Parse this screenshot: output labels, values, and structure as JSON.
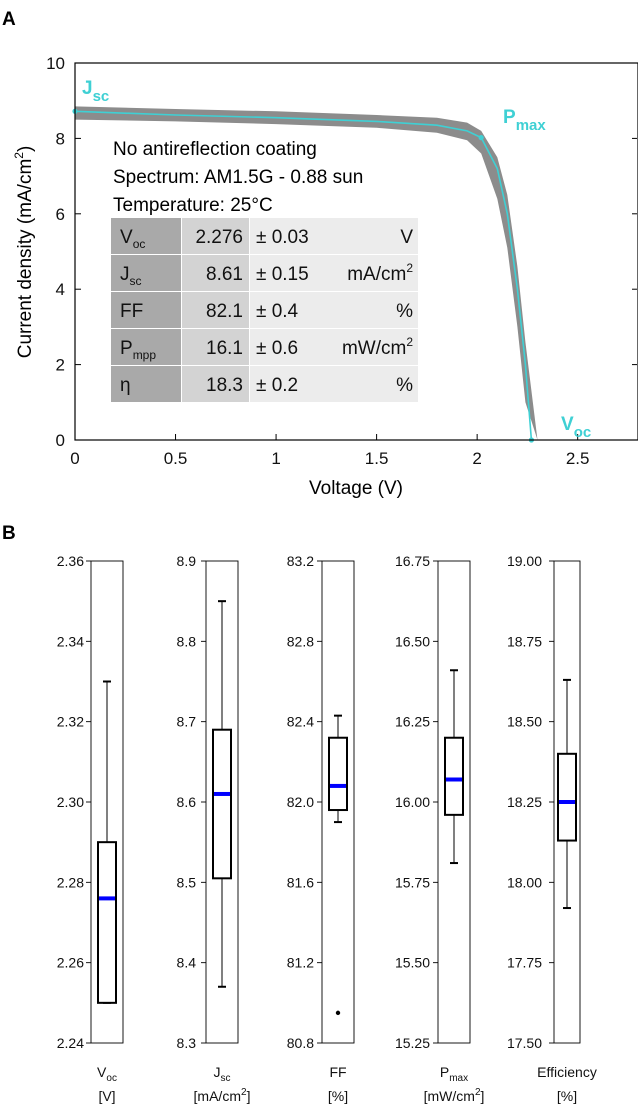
{
  "panel_a": {
    "label": "A",
    "annotations": {
      "line1": "No antireflection coating",
      "line2": "Spectrum: AM1.5G - 0.88 sun",
      "line3": "Temperature: 25°C"
    },
    "point_labels": {
      "jsc": {
        "main": "J",
        "sub": "sc"
      },
      "pmax": {
        "main": "P",
        "sub": "max"
      },
      "voc": {
        "main": "V",
        "sub": "oc"
      }
    },
    "table": [
      {
        "param": "V",
        "sub": "oc",
        "value": "2.276",
        "err": "± 0.03",
        "unit": "V",
        "unit_sup": ""
      },
      {
        "param": "J",
        "sub": "sc",
        "value": "8.61",
        "err": "± 0.15",
        "unit": "mA/cm",
        "unit_sup": "2"
      },
      {
        "param": "FF",
        "sub": "",
        "value": "82.1",
        "err": "± 0.4",
        "unit": "%",
        "unit_sup": ""
      },
      {
        "param": "P",
        "sub": "mpp",
        "value": "16.1",
        "err": "± 0.6",
        "unit": "mW/cm",
        "unit_sup": "2"
      },
      {
        "param": "η",
        "sub": "",
        "value": "18.3",
        "err": "± 0.2",
        "unit": "%",
        "unit_sup": ""
      }
    ]
  },
  "panel_b": {
    "label": "B"
  },
  "colors": {
    "curve": "#3fd0d4",
    "band": "#8c8c8c",
    "median": "#0000ff",
    "label": "#3fd0d4"
  },
  "chart_data": [
    {
      "type": "line",
      "xlabel": "Voltage (V)",
      "ylabel": "Current density (mA/cm",
      "ylabel_sup": "2",
      "ylabel_end": ")",
      "xlim": [
        0,
        2.8
      ],
      "ylim": [
        0,
        10
      ],
      "xticks": [
        "0",
        "0.5",
        "1",
        "1.5",
        "2",
        "2.5"
      ],
      "yticks": [
        "0",
        "2",
        "4",
        "6",
        "8",
        "10"
      ],
      "series": [
        {
          "x": [
            0,
            0.2,
            0.5,
            1.0,
            1.5,
            1.8,
            1.95,
            2.02,
            2.1,
            2.15,
            2.2,
            2.24,
            2.27
          ],
          "y": [
            8.72,
            8.68,
            8.62,
            8.55,
            8.45,
            8.35,
            8.2,
            8.02,
            7.2,
            6.0,
            4.0,
            2.0,
            0.0
          ]
        }
      ],
      "band": {
        "x": [
          0,
          0.5,
          1.0,
          1.5,
          1.8,
          1.95,
          2.02,
          2.1,
          2.15,
          2.2,
          2.24,
          2.3
        ],
        "upper": [
          8.85,
          8.78,
          8.72,
          8.62,
          8.55,
          8.42,
          8.2,
          7.5,
          6.5,
          4.6,
          2.6,
          0.0
        ],
        "lower": [
          8.5,
          8.45,
          8.38,
          8.28,
          8.15,
          7.95,
          7.6,
          6.4,
          5.1,
          3.0,
          1.0,
          0.0
        ]
      },
      "markers": {
        "jsc": [
          0,
          8.72
        ],
        "pmax": [
          2.02,
          8.02
        ],
        "voc": [
          2.27,
          0
        ]
      }
    },
    {
      "type": "box",
      "plots": [
        {
          "label": "V",
          "sub": "oc",
          "unit": "[V]",
          "unit_sup": "",
          "ylim": [
            2.24,
            2.36
          ],
          "ticks": [
            "2.24",
            "2.26",
            "2.28",
            "2.30",
            "2.32",
            "2.34",
            "2.36"
          ],
          "whisker_low": 2.25,
          "q1": 2.25,
          "median": 2.276,
          "q3": 2.29,
          "whisker_high": 2.33,
          "outliers": []
        },
        {
          "label": "J",
          "sub": "sc",
          "unit": "[mA/cm",
          "unit_sup": "2",
          "unit_end": "]",
          "ylim": [
            8.3,
            8.9
          ],
          "ticks": [
            "8.3",
            "8.4",
            "8.5",
            "8.6",
            "8.7",
            "8.8",
            "8.9"
          ],
          "whisker_low": 8.37,
          "q1": 8.505,
          "median": 8.61,
          "q3": 8.69,
          "whisker_high": 8.85,
          "outliers": []
        },
        {
          "label": "FF",
          "sub": "",
          "unit": "[%]",
          "unit_sup": "",
          "ylim": [
            80.8,
            83.2
          ],
          "ticks": [
            "80.8",
            "81.2",
            "81.6",
            "82.0",
            "82.4",
            "82.8",
            "83.2"
          ],
          "whisker_low": 81.9,
          "q1": 81.96,
          "median": 82.08,
          "q3": 82.32,
          "whisker_high": 82.43,
          "outliers": [
            80.95
          ]
        },
        {
          "label": "P",
          "sub": "max",
          "unit": "[mW/cm",
          "unit_sup": "2",
          "unit_end": "]",
          "ylim": [
            15.25,
            16.75
          ],
          "ticks": [
            "15.25",
            "15.50",
            "15.75",
            "16.00",
            "16.25",
            "16.50",
            "16.75"
          ],
          "whisker_low": 15.81,
          "q1": 15.96,
          "median": 16.07,
          "q3": 16.2,
          "whisker_high": 16.41,
          "outliers": []
        },
        {
          "label": "Efficiency",
          "sub": "",
          "unit": "[%]",
          "unit_sup": "",
          "ylim": [
            17.5,
            19.0
          ],
          "ticks": [
            "17.50",
            "17.75",
            "18.00",
            "18.25",
            "18.50",
            "18.75",
            "19.00"
          ],
          "whisker_low": 17.92,
          "q1": 18.13,
          "median": 18.25,
          "q3": 18.4,
          "whisker_high": 18.63,
          "outliers": []
        }
      ]
    }
  ]
}
